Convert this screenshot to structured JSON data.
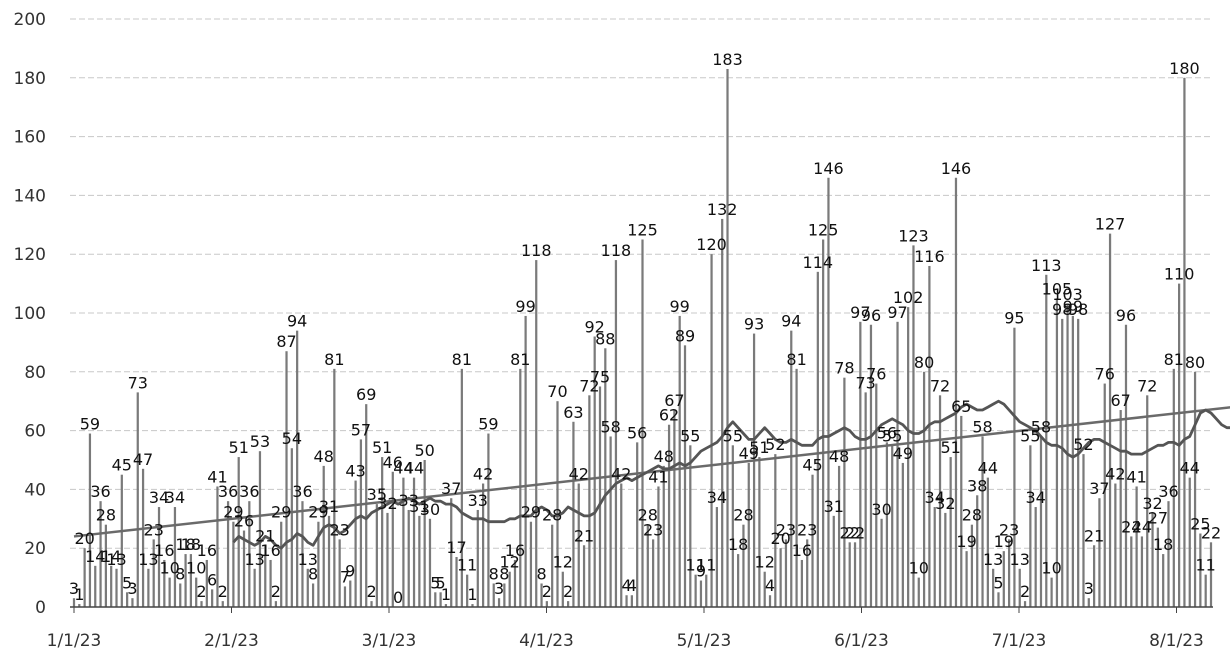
{
  "chart_data": {
    "type": "bar",
    "title": "",
    "xlabel": "",
    "ylabel": "",
    "ylim": [
      0,
      200
    ],
    "y_ticks": [
      0,
      20,
      40,
      60,
      80,
      100,
      120,
      140,
      160,
      180,
      200
    ],
    "x_tick_labels": [
      "1/1/23",
      "2/1/23",
      "3/1/23",
      "4/1/23",
      "5/1/23",
      "6/1/23",
      "7/1/23",
      "8/1/23"
    ],
    "grid": true,
    "legend": "none",
    "colors": {
      "bars": "#7a7a7a",
      "moving_average": "#555555",
      "trendline": "#6a6a6a",
      "grid": "#c8c8c8"
    },
    "series": [
      {
        "type": "bar",
        "values": [
          3,
          1,
          20,
          59,
          14,
          36,
          28,
          14,
          13,
          45,
          5,
          3,
          73,
          47,
          13,
          23,
          34,
          16,
          10,
          34,
          8,
          18,
          18,
          10,
          2,
          16,
          6,
          41,
          2,
          36,
          29,
          51,
          26,
          36,
          13,
          53,
          21,
          16,
          2,
          29,
          87,
          54,
          94,
          36,
          13,
          8,
          29,
          48,
          31,
          81,
          23,
          7,
          9,
          43,
          57,
          69,
          2,
          35,
          51,
          32,
          46,
          0,
          44,
          33,
          44,
          31,
          50,
          30,
          5,
          5,
          1,
          37,
          17,
          81,
          11,
          1,
          33,
          42,
          59,
          8,
          3,
          8,
          12,
          16,
          81,
          99,
          29,
          118,
          8,
          2,
          28,
          70,
          12,
          2,
          63,
          42,
          21,
          72,
          92,
          75,
          88,
          58,
          118,
          42,
          4,
          4,
          56,
          125,
          28,
          23,
          41,
          48,
          62,
          67,
          99,
          89,
          55,
          11,
          9,
          11,
          120,
          34,
          132,
          183,
          55,
          18,
          28,
          49,
          93,
          51,
          12,
          4,
          52,
          20,
          23,
          94,
          81,
          16,
          23,
          45,
          114,
          125,
          146,
          31,
          48,
          78,
          22,
          22,
          97,
          73,
          96,
          76,
          30,
          56,
          55,
          97,
          49,
          102,
          123,
          10,
          80,
          116,
          34,
          72,
          32,
          51,
          146,
          65,
          19,
          28,
          38,
          58,
          44,
          13,
          5,
          19,
          23,
          95,
          13,
          2,
          55,
          34,
          58,
          113,
          10,
          105,
          98,
          103,
          99,
          98,
          52,
          3,
          21,
          37,
          76,
          127,
          42,
          67,
          96,
          24,
          41,
          24,
          72,
          32,
          27,
          18,
          36,
          81,
          110,
          180,
          44,
          80,
          25,
          11,
          22
        ],
        "data_labels": [
          "3",
          "1",
          "20",
          "59",
          "14",
          "36",
          "28",
          "14",
          "13",
          "45",
          "5",
          "3",
          "73",
          "47",
          "13",
          "23",
          "34",
          "16",
          "10",
          "34",
          "8",
          "18",
          "18",
          "10",
          "2",
          "16",
          "6",
          "41",
          "2",
          "36",
          "29",
          "51",
          "26",
          "36",
          "13",
          "53",
          "21",
          "16",
          "2",
          "29",
          "87",
          "54",
          "94",
          "36",
          "13",
          "8",
          "29",
          "48",
          "31",
          "81",
          "23",
          "7",
          "9",
          "43",
          "57",
          "69",
          "2",
          "35",
          "51",
          "32",
          "46",
          "0",
          "44",
          "33",
          "44",
          "31",
          "50",
          "30",
          "5",
          "5",
          "1",
          "37",
          "17",
          "81",
          "11",
          "1",
          "33",
          "42",
          "59",
          "8",
          "3",
          "8",
          "12",
          "16",
          "81",
          "99",
          "29",
          "118",
          "8",
          "2",
          "28",
          "70",
          "12",
          "2",
          "63",
          "42",
          "21",
          "72",
          "92",
          "75",
          "88",
          "58",
          "118",
          "42",
          "4",
          "4",
          "56",
          "125",
          "28",
          "23",
          "41",
          "48",
          "62",
          "67",
          "99",
          "89",
          "55",
          "11",
          "9",
          "11",
          "120",
          "34",
          "132",
          "183",
          "55",
          "18",
          "28",
          "49",
          "93",
          "51",
          "12",
          "4",
          "52",
          "20",
          "23",
          "94",
          "81",
          "16",
          "23",
          "45",
          "114",
          "125",
          "146",
          "31",
          "48",
          "78",
          "22",
          "22",
          "97",
          "73",
          "96",
          "76",
          "30",
          "56",
          "55",
          "97",
          "49",
          "102",
          "123",
          "10",
          "80",
          "116",
          "34",
          "72",
          "32",
          "51",
          "146",
          "65",
          "19",
          "28",
          "38",
          "58",
          "44",
          "13",
          "5",
          "19",
          "23",
          "95",
          "13",
          "2",
          "55",
          "34",
          "58",
          "113",
          "10",
          "105",
          "98",
          "103",
          "99",
          "98",
          "52",
          "3",
          "21",
          "37",
          "76",
          "127",
          "42",
          "67",
          "96",
          "24",
          "41",
          "24",
          "72",
          "32",
          "27",
          "18",
          "36",
          "81",
          "110",
          "180",
          "44",
          "80",
          "25",
          "11",
          "22"
        ]
      },
      {
        "type": "line",
        "role": "moving_average",
        "points": [
          [
            30,
            22
          ],
          [
            31,
            24
          ],
          [
            32,
            23
          ],
          [
            33,
            22
          ],
          [
            34,
            21
          ],
          [
            35,
            22
          ],
          [
            36,
            24
          ],
          [
            37,
            23
          ],
          [
            38,
            21
          ],
          [
            39,
            20
          ],
          [
            40,
            22
          ],
          [
            41,
            23
          ],
          [
            42,
            25
          ],
          [
            43,
            24
          ],
          [
            44,
            22
          ],
          [
            45,
            21
          ],
          [
            46,
            24
          ],
          [
            47,
            27
          ],
          [
            48,
            28
          ],
          [
            49,
            27
          ],
          [
            50,
            25
          ],
          [
            51,
            26
          ],
          [
            52,
            28
          ],
          [
            53,
            30
          ],
          [
            54,
            31
          ],
          [
            55,
            30
          ],
          [
            56,
            32
          ],
          [
            57,
            33
          ],
          [
            58,
            34
          ],
          [
            59,
            35
          ],
          [
            60,
            36
          ],
          [
            61,
            35
          ],
          [
            62,
            36
          ],
          [
            63,
            37
          ],
          [
            64,
            36
          ],
          [
            65,
            35
          ],
          [
            66,
            36
          ],
          [
            67,
            37
          ],
          [
            68,
            36
          ],
          [
            69,
            36
          ],
          [
            70,
            35
          ],
          [
            71,
            35
          ],
          [
            72,
            34
          ],
          [
            73,
            32
          ],
          [
            74,
            31
          ],
          [
            75,
            30
          ],
          [
            76,
            30
          ],
          [
            77,
            30
          ],
          [
            78,
            29
          ],
          [
            79,
            29
          ],
          [
            80,
            29
          ],
          [
            81,
            29
          ],
          [
            82,
            30
          ],
          [
            83,
            30
          ],
          [
            84,
            31
          ],
          [
            85,
            31
          ],
          [
            86,
            31
          ],
          [
            87,
            33
          ],
          [
            88,
            34
          ],
          [
            89,
            33
          ],
          [
            90,
            31
          ],
          [
            91,
            31
          ],
          [
            92,
            32
          ],
          [
            93,
            34
          ],
          [
            94,
            33
          ],
          [
            95,
            32
          ],
          [
            96,
            31
          ],
          [
            97,
            31
          ],
          [
            98,
            32
          ],
          [
            99,
            35
          ],
          [
            100,
            38
          ],
          [
            101,
            40
          ],
          [
            102,
            42
          ],
          [
            103,
            43
          ],
          [
            104,
            44
          ],
          [
            105,
            43
          ],
          [
            106,
            44
          ],
          [
            107,
            45
          ],
          [
            108,
            46
          ],
          [
            109,
            47
          ],
          [
            110,
            48
          ],
          [
            111,
            47
          ],
          [
            112,
            47
          ],
          [
            113,
            48
          ],
          [
            114,
            49
          ],
          [
            115,
            48
          ],
          [
            116,
            49
          ],
          [
            117,
            51
          ],
          [
            118,
            53
          ],
          [
            119,
            54
          ],
          [
            120,
            55
          ],
          [
            121,
            56
          ],
          [
            122,
            58
          ],
          [
            123,
            61
          ],
          [
            124,
            63
          ],
          [
            125,
            61
          ],
          [
            126,
            59
          ],
          [
            127,
            57
          ],
          [
            128,
            57
          ],
          [
            129,
            59
          ],
          [
            130,
            61
          ],
          [
            131,
            59
          ],
          [
            132,
            57
          ],
          [
            133,
            56
          ],
          [
            134,
            56
          ],
          [
            135,
            57
          ],
          [
            136,
            56
          ],
          [
            137,
            55
          ],
          [
            138,
            55
          ],
          [
            139,
            55
          ],
          [
            140,
            57
          ],
          [
            141,
            58
          ],
          [
            142,
            58
          ],
          [
            143,
            59
          ],
          [
            144,
            60
          ],
          [
            145,
            61
          ],
          [
            146,
            60
          ],
          [
            147,
            58
          ],
          [
            148,
            57
          ],
          [
            149,
            57
          ],
          [
            150,
            58
          ],
          [
            151,
            60
          ],
          [
            152,
            62
          ],
          [
            153,
            63
          ],
          [
            154,
            64
          ],
          [
            155,
            63
          ],
          [
            156,
            62
          ],
          [
            157,
            60
          ],
          [
            158,
            59
          ],
          [
            159,
            59
          ],
          [
            160,
            60
          ],
          [
            161,
            62
          ],
          [
            162,
            63
          ],
          [
            163,
            63
          ],
          [
            164,
            64
          ],
          [
            165,
            65
          ],
          [
            166,
            66
          ],
          [
            167,
            68
          ],
          [
            168,
            69
          ],
          [
            169,
            68
          ],
          [
            170,
            67
          ],
          [
            171,
            67
          ],
          [
            172,
            68
          ],
          [
            173,
            69
          ],
          [
            174,
            70
          ],
          [
            175,
            69
          ],
          [
            176,
            67
          ],
          [
            177,
            65
          ],
          [
            178,
            63
          ],
          [
            179,
            62
          ],
          [
            180,
            61
          ],
          [
            181,
            60
          ],
          [
            182,
            58
          ],
          [
            183,
            56
          ],
          [
            184,
            55
          ],
          [
            185,
            55
          ],
          [
            186,
            54
          ],
          [
            187,
            52
          ],
          [
            188,
            51
          ],
          [
            189,
            52
          ],
          [
            190,
            54
          ],
          [
            191,
            56
          ],
          [
            192,
            57
          ],
          [
            193,
            57
          ],
          [
            194,
            56
          ],
          [
            195,
            55
          ],
          [
            196,
            54
          ],
          [
            197,
            53
          ],
          [
            198,
            53
          ],
          [
            199,
            52
          ],
          [
            200,
            52
          ],
          [
            201,
            52
          ],
          [
            202,
            53
          ],
          [
            203,
            54
          ],
          [
            204,
            55
          ],
          [
            205,
            55
          ],
          [
            206,
            56
          ],
          [
            207,
            56
          ],
          [
            208,
            55
          ],
          [
            209,
            57
          ],
          [
            210,
            58
          ],
          [
            211,
            62
          ],
          [
            212,
            66
          ],
          [
            213,
            67
          ],
          [
            214,
            66
          ],
          [
            215,
            64
          ],
          [
            216,
            62
          ],
          [
            217,
            61
          ],
          [
            218,
            61
          ]
        ]
      },
      {
        "type": "line",
        "role": "trendline",
        "points": [
          [
            0,
            24
          ],
          [
            218,
            68
          ]
        ]
      }
    ]
  }
}
